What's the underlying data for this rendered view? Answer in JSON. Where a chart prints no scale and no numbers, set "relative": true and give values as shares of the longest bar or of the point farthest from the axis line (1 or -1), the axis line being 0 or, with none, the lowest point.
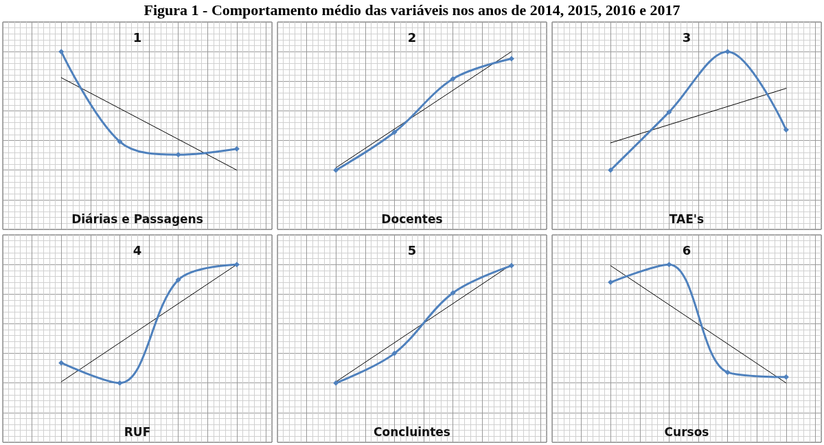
{
  "chart_data": [
    {
      "type": "line",
      "title": "1",
      "xlabel": "Diárias e Passagens",
      "annotations": [
        "Figura 1 - Comportamento médio das variáveis nos anos de 2014, 2015, 2016 e 2017"
      ],
      "categories": [
        null,
        null,
        null,
        null
      ],
      "relative": true,
      "grid": true,
      "series": [
        {
          "color": "#4f81bd",
          "marker": "diamond",
          "values": [
            1,
            0.24,
            0.13,
            0.18
          ]
        },
        {
          "type": "line",
          "color": "#000000",
          "marker": "none",
          "values": [
            0.78,
            null,
            null,
            0
          ]
        }
      ]
    },
    {
      "type": "line",
      "title": "2",
      "xlabel": "Docentes",
      "categories": [
        null,
        null,
        null,
        null
      ],
      "relative": true,
      "grid": true,
      "series": [
        {
          "color": "#4f81bd",
          "marker": "diamond",
          "values": [
            0,
            0.32,
            0.77,
            0.94
          ]
        },
        {
          "type": "line",
          "color": "#000000",
          "marker": "none",
          "values": [
            0.02,
            null,
            null,
            1
          ]
        }
      ]
    },
    {
      "type": "line",
      "title": "3",
      "xlabel": "TAE's",
      "categories": [
        null,
        null,
        null,
        null
      ],
      "relative": true,
      "grid": true,
      "series": [
        {
          "color": "#4f81bd",
          "marker": "diamond",
          "values": [
            0,
            0.49,
            1,
            0.34
          ]
        },
        {
          "type": "line",
          "color": "#000000",
          "marker": "none",
          "values": [
            0.23,
            null,
            null,
            0.69
          ]
        }
      ]
    },
    {
      "type": "line",
      "title": "4",
      "xlabel": "RUF",
      "categories": [
        null,
        null,
        null,
        null
      ],
      "relative": true,
      "grid": true,
      "series": [
        {
          "color": "#4f81bd",
          "marker": "diamond",
          "values": [
            0.17,
            0,
            0.87,
            1
          ]
        },
        {
          "type": "line",
          "color": "#000000",
          "marker": "none",
          "values": [
            0.01,
            null,
            null,
            1
          ]
        }
      ]
    },
    {
      "type": "line",
      "title": "5",
      "xlabel": "Concluintes",
      "categories": [
        null,
        null,
        null,
        null
      ],
      "relative": true,
      "grid": true,
      "series": [
        {
          "color": "#4f81bd",
          "marker": "diamond",
          "values": [
            0,
            0.25,
            0.76,
            0.99
          ]
        },
        {
          "type": "line",
          "color": "#000000",
          "marker": "none",
          "values": [
            0.01,
            null,
            null,
            1
          ]
        }
      ]
    },
    {
      "type": "line",
      "title": "6",
      "xlabel": "Cursos",
      "categories": [
        null,
        null,
        null,
        null
      ],
      "relative": true,
      "grid": true,
      "series": [
        {
          "color": "#4f81bd",
          "marker": "diamond",
          "values": [
            0.85,
            1,
            0.09,
            0.05
          ]
        },
        {
          "type": "line",
          "color": "#000000",
          "marker": "none",
          "values": [
            0.99,
            null,
            null,
            0
          ]
        }
      ]
    }
  ]
}
